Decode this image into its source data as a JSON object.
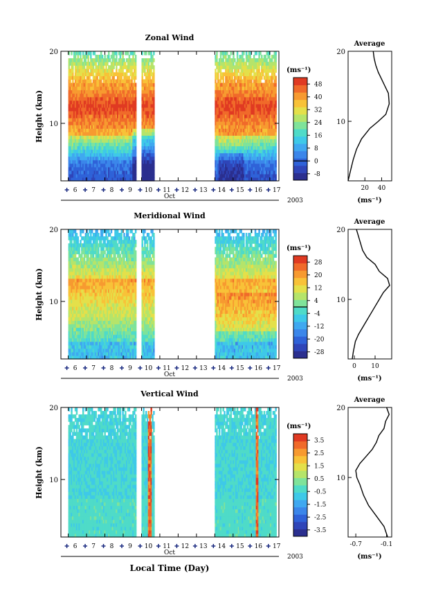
{
  "xlabel": "Local Time (Day)",
  "month_label": "Oct",
  "year_label": "2003",
  "unit_label": "(ms⁻¹)",
  "avg_title": "Average",
  "ylabel": "Height (km)",
  "colormap": [
    "#2b2f8f",
    "#2f45b8",
    "#2f62d8",
    "#3b86ea",
    "#3fa8f0",
    "#3ec9e8",
    "#4fdbc8",
    "#7fe39a",
    "#b5e46a",
    "#e4e04a",
    "#f8c238",
    "#f79a30",
    "#f06a2a",
    "#e03a22"
  ],
  "chart_data": [
    {
      "type": "heatmap",
      "title": "Zonal Wind",
      "ylabel": "Height (km)",
      "y_ticks": [
        10,
        20
      ],
      "ylim": [
        1.5,
        20
      ],
      "x_days": [
        "6",
        "7",
        "8",
        "9",
        "10",
        "11",
        "12",
        "13",
        "14",
        "15",
        "16",
        "17"
      ],
      "xlim": [
        5.6,
        17.5
      ],
      "data_ranges": [
        [
          6.0,
          9.7
        ],
        [
          10.0,
          10.7
        ],
        [
          14.0,
          17.3
        ]
      ],
      "colorbar": {
        "ticks": [
          "-8",
          "0",
          "8",
          "16",
          "24",
          "32",
          "40",
          "48"
        ],
        "min": -12,
        "max": 52,
        "zero_line": 0
      },
      "average": {
        "x_ticks": [
          "20",
          "40"
        ],
        "xlim": [
          0,
          52
        ],
        "profile": [
          [
            0,
            1.5
          ],
          [
            3,
            3
          ],
          [
            6,
            4.5
          ],
          [
            10,
            6
          ],
          [
            16,
            7.5
          ],
          [
            26,
            9
          ],
          [
            36,
            10
          ],
          [
            45,
            11
          ],
          [
            49,
            12.5
          ],
          [
            48,
            14
          ],
          [
            44,
            15
          ],
          [
            40,
            16
          ],
          [
            36,
            17
          ],
          [
            33,
            18
          ],
          [
            31,
            19
          ],
          [
            30,
            20
          ]
        ]
      }
    },
    {
      "type": "heatmap",
      "title": "Meridional Wind",
      "ylabel": "Height (km)",
      "y_ticks": [
        10,
        20
      ],
      "ylim": [
        1.5,
        20
      ],
      "x_days": [
        "6",
        "7",
        "8",
        "9",
        "10",
        "11",
        "12",
        "13",
        "14",
        "15",
        "16",
        "17"
      ],
      "xlim": [
        5.6,
        17.5
      ],
      "data_ranges": [
        [
          6.0,
          9.7
        ],
        [
          10.0,
          10.7
        ],
        [
          14.0,
          17.3
        ]
      ],
      "colorbar": {
        "ticks": [
          "-28",
          "-20",
          "-12",
          "-4",
          "4",
          "12",
          "20",
          "28"
        ],
        "min": -32,
        "max": 32,
        "zero_line": 0
      },
      "average": {
        "x_ticks": [
          "0",
          "10"
        ],
        "xlim": [
          -3,
          18
        ],
        "profile": [
          [
            -1,
            1.5
          ],
          [
            -0.5,
            2.5
          ],
          [
            0.5,
            4
          ],
          [
            2,
            5
          ],
          [
            4,
            6
          ],
          [
            6,
            7
          ],
          [
            8,
            8
          ],
          [
            10,
            9
          ],
          [
            12,
            10
          ],
          [
            14,
            11
          ],
          [
            17,
            12
          ],
          [
            16,
            13
          ],
          [
            12,
            14
          ],
          [
            10,
            15
          ],
          [
            6,
            16
          ],
          [
            4,
            17
          ],
          [
            3,
            18
          ],
          [
            2,
            19
          ],
          [
            1,
            20
          ]
        ]
      }
    },
    {
      "type": "heatmap",
      "title": "Vertical Wind",
      "ylabel": "Height (km)",
      "y_ticks": [
        10,
        20
      ],
      "ylim": [
        1.5,
        20
      ],
      "x_days": [
        "6",
        "7",
        "8",
        "9",
        "10",
        "11",
        "12",
        "13",
        "14",
        "15",
        "16",
        "17"
      ],
      "xlim": [
        5.6,
        17.5
      ],
      "data_ranges": [
        [
          6.0,
          9.7
        ],
        [
          10.0,
          10.7
        ],
        [
          14.0,
          17.3
        ]
      ],
      "colorbar": {
        "ticks": [
          "-3.5",
          "-2.5",
          "-1.5",
          "-0.5",
          "0.5",
          "1.5",
          "2.5",
          "3.5"
        ],
        "min": -4,
        "max": 4
      },
      "average": {
        "x_ticks": [
          "-0.7",
          "-0.1"
        ],
        "xlim": [
          -0.85,
          0.0
        ],
        "profile": [
          [
            -0.08,
            1.5
          ],
          [
            -0.15,
            3
          ],
          [
            -0.3,
            4.5
          ],
          [
            -0.45,
            6
          ],
          [
            -0.55,
            7.5
          ],
          [
            -0.62,
            9
          ],
          [
            -0.68,
            10
          ],
          [
            -0.7,
            11
          ],
          [
            -0.62,
            12
          ],
          [
            -0.5,
            13
          ],
          [
            -0.38,
            14
          ],
          [
            -0.3,
            15
          ],
          [
            -0.25,
            16
          ],
          [
            -0.15,
            17
          ],
          [
            -0.12,
            18
          ],
          [
            -0.05,
            19
          ],
          [
            -0.1,
            20
          ]
        ]
      }
    }
  ]
}
